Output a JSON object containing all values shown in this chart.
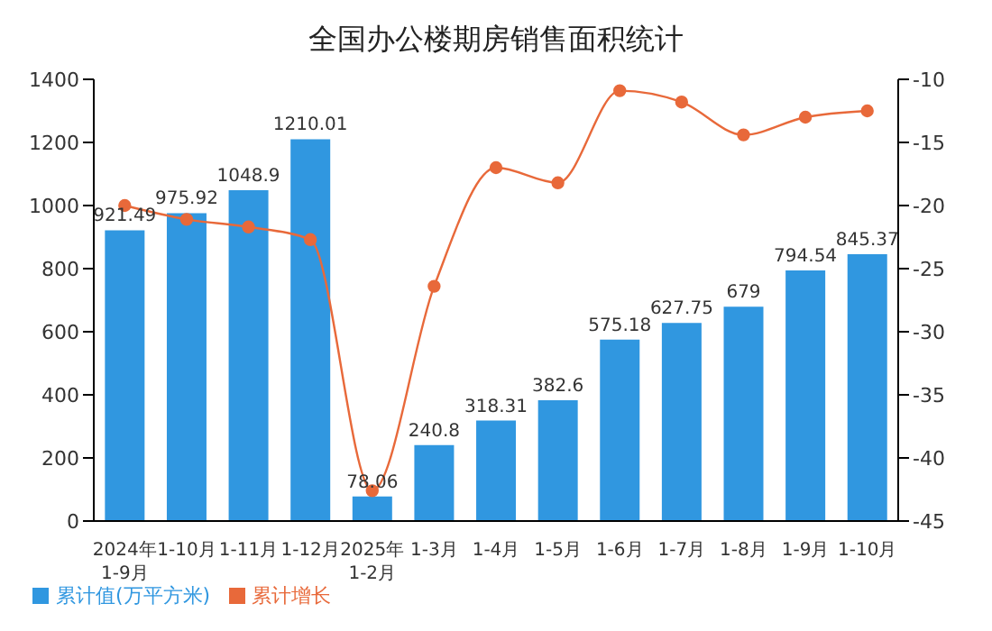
{
  "chart_data": {
    "type": "bar",
    "title": "全国办公楼期房销售面积统计",
    "categories": [
      "2024年\n1-9月",
      "1-10月",
      "1-11月",
      "1-12月",
      "2025年\n1-2月",
      "1-3月",
      "1-4月",
      "1-5月",
      "1-6月",
      "1-7月",
      "1-8月",
      "1-9月",
      "1-10月"
    ],
    "series": [
      {
        "name": "累计值(万平方米)",
        "color": "#3097e0",
        "values": [
          921.49,
          975.92,
          1048.9,
          1210.01,
          78.06,
          240.8,
          318.31,
          382.6,
          575.18,
          627.75,
          679,
          794.54,
          845.37
        ],
        "data_labels": true
      },
      {
        "name": "累计增长",
        "type": "line",
        "axis": "y2",
        "color": "#e8693a",
        "marker": "circle",
        "values": [
          -20.0,
          -21.1,
          -21.7,
          -22.7,
          -42.6,
          -26.4,
          -17.0,
          -18.2,
          -10.9,
          -11.8,
          -14.4,
          -13.0,
          -12.5
        ]
      }
    ],
    "ylim": [
      0,
      1400
    ],
    "yticks": [
      0,
      200,
      400,
      600,
      800,
      1000,
      1200,
      1400
    ],
    "y2lim": [
      -45,
      -10
    ],
    "y2ticks": [
      -45,
      -40,
      -35,
      -30,
      -25,
      -20,
      -15,
      -10
    ],
    "grid": false,
    "legend": "bottom left"
  }
}
